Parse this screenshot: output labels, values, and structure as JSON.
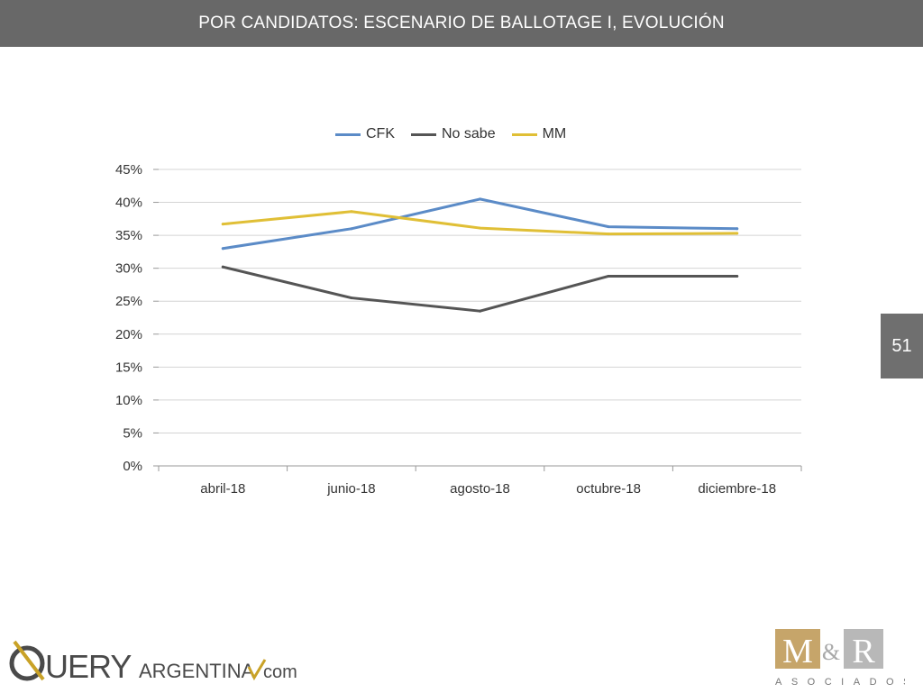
{
  "header": {
    "title": "POR CANDIDATOS: ESCENARIO DE BALLOTAGE I, EVOLUCIÓN"
  },
  "page_number": "51",
  "logos": {
    "left": "QUERYARGENTINA.com",
    "right_main": "M&R",
    "right_sub": "ASOCIADOS"
  },
  "colors": {
    "header_bg": "#686868",
    "cfk": "#5b8bc7",
    "no_sabe": "#555555",
    "mm": "#e0bf36",
    "grid": "#d4d4d4"
  },
  "chart_data": {
    "type": "line",
    "categories": [
      "abril-18",
      "junio-18",
      "agosto-18",
      "octubre-18",
      "diciembre-18"
    ],
    "series": [
      {
        "name": "CFK",
        "values": [
          33.0,
          36.0,
          40.5,
          36.3,
          36.0
        ]
      },
      {
        "name": "No sabe",
        "values": [
          30.2,
          25.5,
          23.5,
          28.8,
          28.8
        ]
      },
      {
        "name": "MM",
        "values": [
          36.7,
          38.6,
          36.1,
          35.2,
          35.3
        ]
      }
    ],
    "yticks": [
      "0%",
      "5%",
      "10%",
      "15%",
      "20%",
      "25%",
      "30%",
      "35%",
      "40%",
      "45%"
    ],
    "ylim": [
      0,
      45
    ],
    "grid": true,
    "legend": "top-center"
  }
}
